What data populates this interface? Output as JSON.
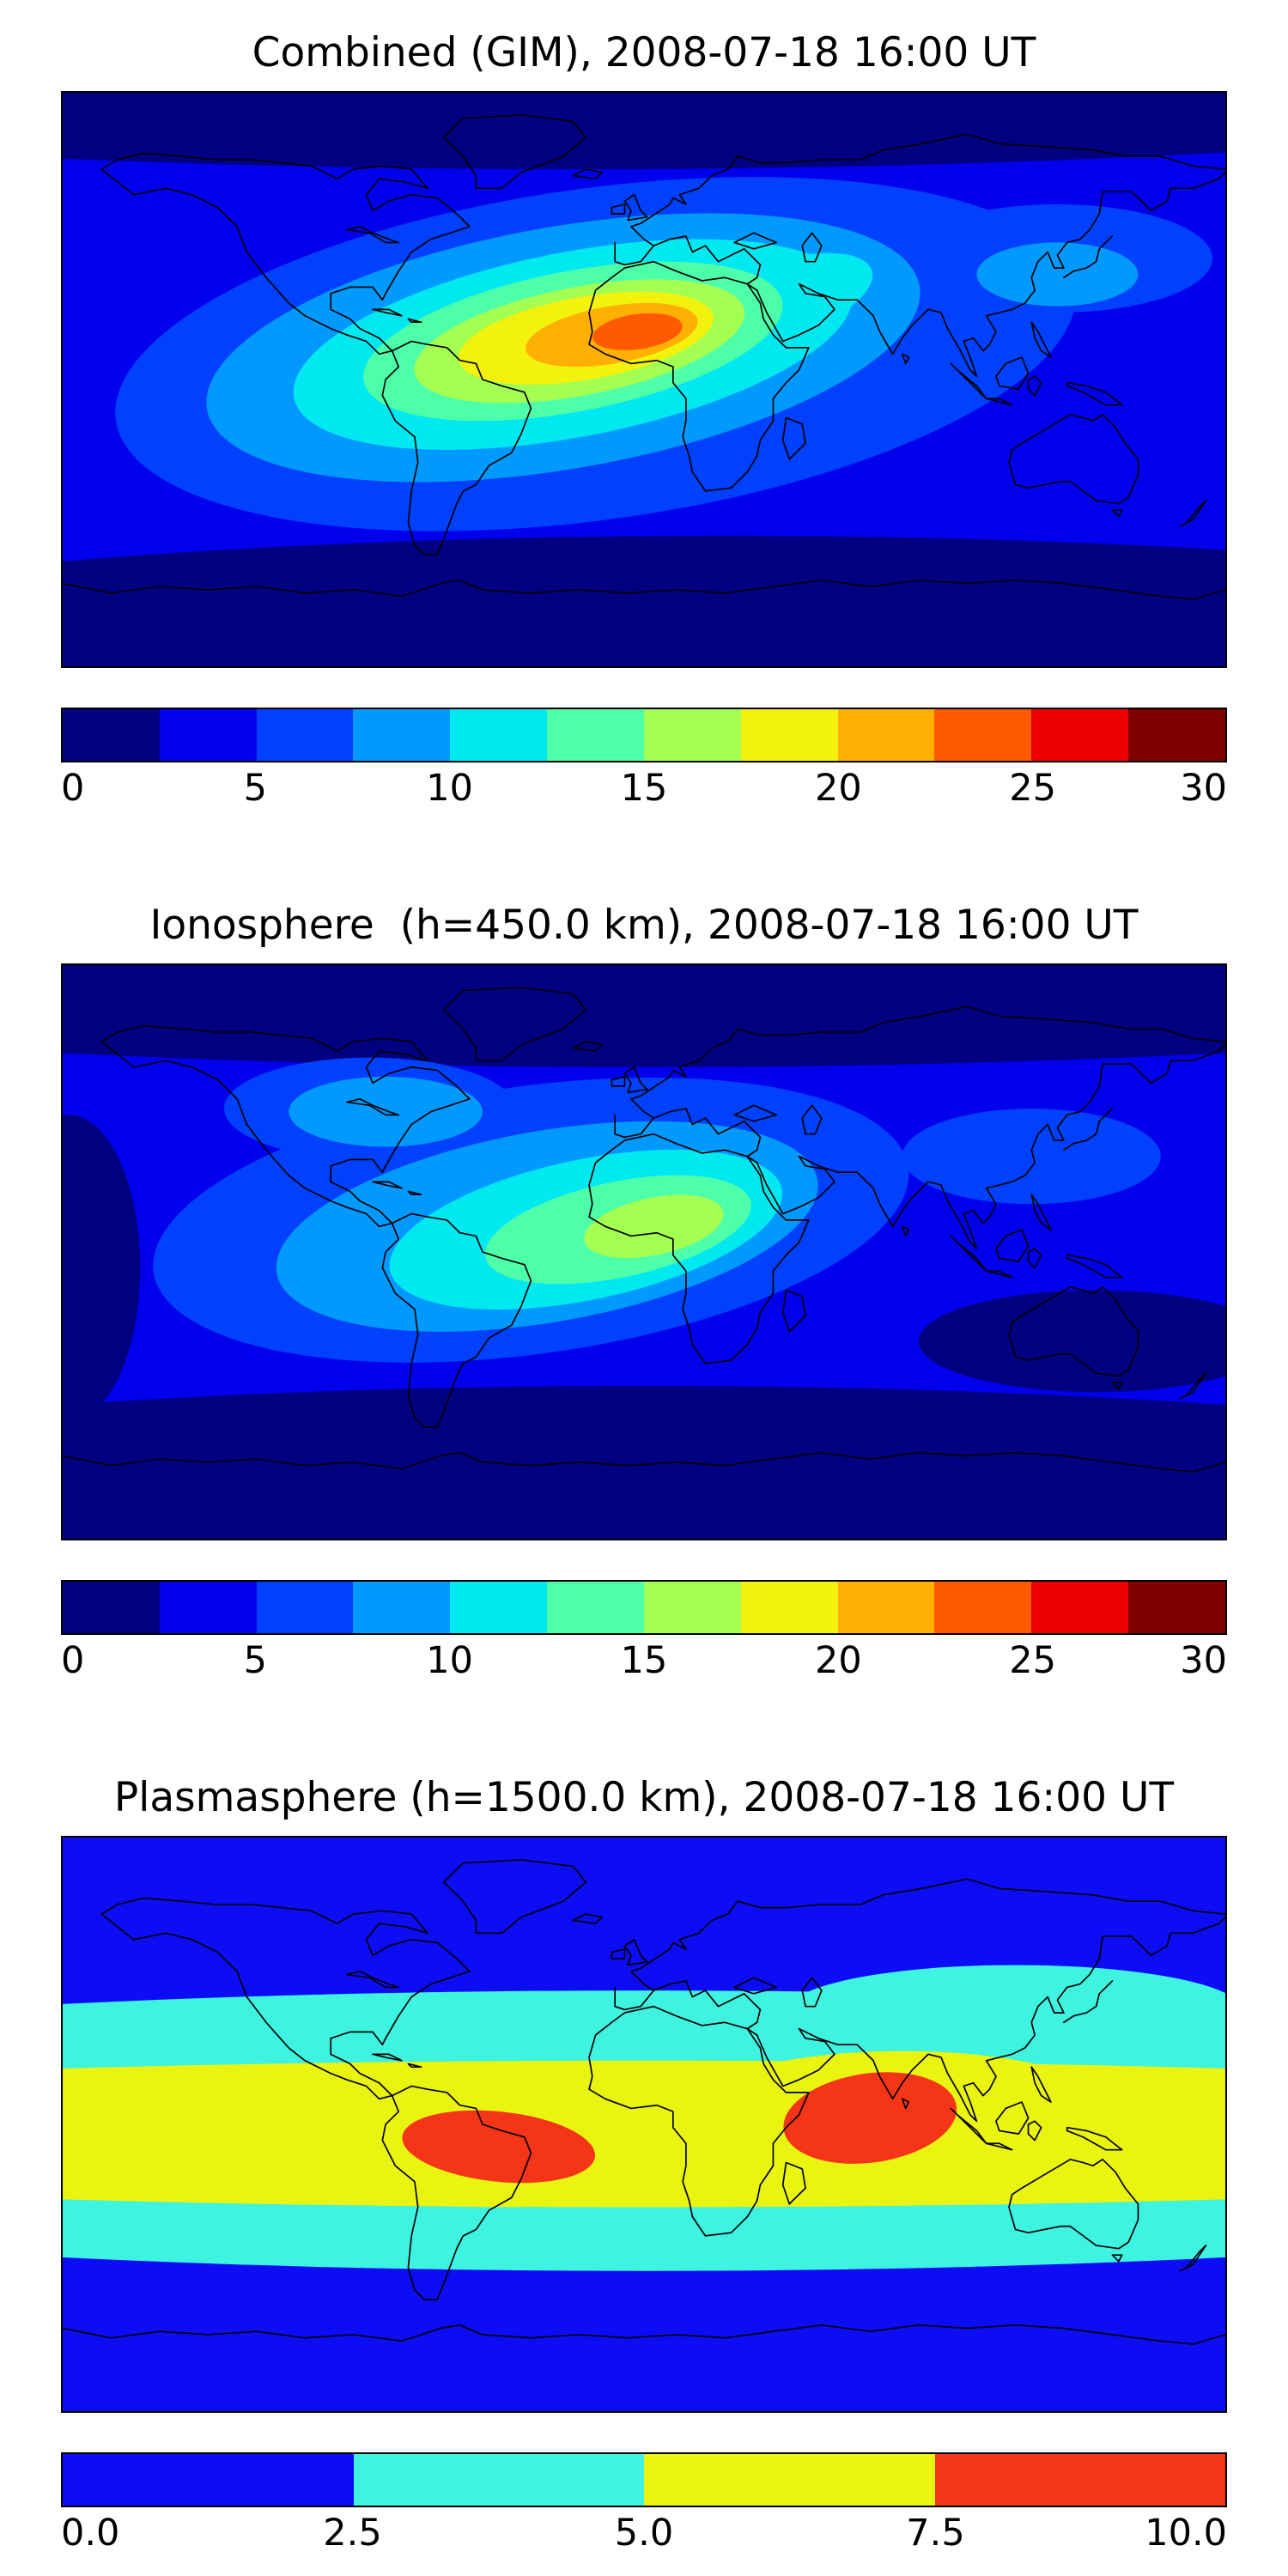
{
  "panels": [
    {
      "id": "combined",
      "title": "Combined (GIM), 2008-07-18 16:00 UT",
      "colorbar": {
        "min": 0,
        "max": 30,
        "ticks": [
          "0",
          "5",
          "10",
          "15",
          "20",
          "25",
          "30"
        ]
      }
    },
    {
      "id": "ionosphere",
      "title": "Ionosphere  (h=450.0 km), 2008-07-18 16:00 UT",
      "colorbar": {
        "min": 0,
        "max": 30,
        "ticks": [
          "0",
          "5",
          "10",
          "15",
          "20",
          "25",
          "30"
        ]
      }
    },
    {
      "id": "plasmasphere",
      "title": "Plasmasphere (h=1500.0 km), 2008-07-18 16:00 UT",
      "colorbar": {
        "min": 0,
        "max": 10,
        "ticks": [
          "0.0",
          "2.5",
          "5.0",
          "7.5",
          "10.0"
        ]
      }
    }
  ],
  "chart_data": [
    {
      "type": "heatmap",
      "title": "Combined (GIM), 2008-07-18 16:00 UT",
      "projection": "equirectangular",
      "x": "longitude",
      "xlim": [
        -180,
        180
      ],
      "y": "latitude",
      "ylim": [
        -90,
        90
      ],
      "levels": [
        0,
        2.5,
        5,
        7.5,
        10,
        12.5,
        15,
        17.5,
        20,
        22.5,
        25,
        27.5,
        30
      ],
      "palette": [
        "#000080",
        "#0000ed",
        "#0040ff",
        "#0099ff",
        "#00e8f0",
        "#4dffa9",
        "#a4ff53",
        "#f2f20d",
        "#ffb000",
        "#ff5a00",
        "#ef0000",
        "#800000"
      ],
      "base_color": "#0000ed",
      "peak_value": 27,
      "peak_location": {
        "lon": 0,
        "lat": 15
      },
      "features": [
        {
          "shape": "ellipse",
          "color": "#000080",
          "cx": -20,
          "cy": 110,
          "rx": 420,
          "ry": 44
        },
        {
          "shape": "ellipse",
          "color": "#000080",
          "cx": 25,
          "cy": -112,
          "rx": 420,
          "ry": 63
        },
        {
          "shape": "ellipse",
          "color": "#0040ff",
          "cx": -15,
          "cy": 8,
          "rx": 150,
          "ry": 52,
          "rot": -8
        },
        {
          "shape": "ellipse",
          "color": "#0040ff",
          "cx": 128,
          "cy": 38,
          "rx": 48,
          "ry": 17
        },
        {
          "shape": "ellipse",
          "color": "#0099ff",
          "cx": -25,
          "cy": 10,
          "rx": 112,
          "ry": 38,
          "rot": -10
        },
        {
          "shape": "ellipse",
          "color": "#0099ff",
          "cx": 128,
          "cy": 33,
          "rx": 25,
          "ry": 10
        },
        {
          "shape": "ellipse",
          "color": "#00e8f0",
          "cx": -22,
          "cy": 11,
          "rx": 88,
          "ry": 29,
          "rot": -11
        },
        {
          "shape": "ellipse",
          "color": "#00e8f0",
          "cx": 42,
          "cy": 25,
          "rx": 30,
          "ry": 12,
          "rot": -18
        },
        {
          "shape": "ellipse",
          "color": "#4dffa9",
          "cx": -22,
          "cy": 12,
          "rx": 66,
          "ry": 22,
          "rot": -11
        },
        {
          "shape": "ellipse",
          "color": "#a4ff53",
          "cx": -20,
          "cy": 12,
          "rx": 52,
          "ry": 17,
          "rot": -11
        },
        {
          "shape": "ellipse",
          "color": "#f2f20d",
          "cx": -18,
          "cy": 13,
          "rx": 40,
          "ry": 13,
          "rot": -10
        },
        {
          "shape": "ellipse",
          "color": "#ffb000",
          "cx": -10,
          "cy": 14,
          "rx": 27,
          "ry": 9,
          "rot": -10
        },
        {
          "shape": "ellipse",
          "color": "#ff5a00",
          "cx": -2,
          "cy": 15,
          "rx": 14,
          "ry": 5.5,
          "rot": -8
        }
      ]
    },
    {
      "type": "heatmap",
      "title": "Ionosphere  (h=450.0 km), 2008-07-18 16:00 UT",
      "projection": "equirectangular",
      "x": "longitude",
      "xlim": [
        -180,
        180
      ],
      "y": "latitude",
      "ylim": [
        -90,
        90
      ],
      "levels": [
        0,
        2.5,
        5,
        7.5,
        10,
        12.5,
        15,
        17.5,
        20,
        22.5,
        25,
        27.5,
        30
      ],
      "palette": [
        "#000080",
        "#0000ed",
        "#0040ff",
        "#0099ff",
        "#00e8f0",
        "#4dffa9",
        "#a4ff53",
        "#f2f20d",
        "#ffb000",
        "#ff5a00",
        "#ef0000",
        "#800000"
      ],
      "base_color": "#0000ed",
      "peak_value": 17,
      "peak_location": {
        "lon": 3,
        "lat": 8
      },
      "features": [
        {
          "shape": "ellipse",
          "color": "#000080",
          "cx": 0,
          "cy": 104,
          "rx": 420,
          "ry": 46
        },
        {
          "shape": "ellipse",
          "color": "#000080",
          "cx": 0,
          "cy": -104,
          "rx": 420,
          "ry": 62
        },
        {
          "shape": "ellipse",
          "color": "#000080",
          "cx": 140,
          "cy": -28,
          "rx": 55,
          "ry": 16
        },
        {
          "shape": "ellipse",
          "color": "#000080",
          "cx": -178,
          "cy": -5,
          "rx": 22,
          "ry": 48
        },
        {
          "shape": "ellipse",
          "color": "#0040ff",
          "cx": -35,
          "cy": 10,
          "rx": 118,
          "ry": 42,
          "rot": -8
        },
        {
          "shape": "ellipse",
          "color": "#0040ff",
          "cx": -85,
          "cy": 45,
          "rx": 45,
          "ry": 16
        },
        {
          "shape": "ellipse",
          "color": "#0040ff",
          "cx": 120,
          "cy": 30,
          "rx": 40,
          "ry": 15
        },
        {
          "shape": "ellipse",
          "color": "#0099ff",
          "cx": -30,
          "cy": 8,
          "rx": 85,
          "ry": 30,
          "rot": -10
        },
        {
          "shape": "ellipse",
          "color": "#0099ff",
          "cx": -80,
          "cy": 44,
          "rx": 30,
          "ry": 11
        },
        {
          "shape": "ellipse",
          "color": "#00e8f0",
          "cx": -18,
          "cy": 7,
          "rx": 62,
          "ry": 22,
          "rot": -12
        },
        {
          "shape": "ellipse",
          "color": "#4dffa9",
          "cx": -8,
          "cy": 7,
          "rx": 42,
          "ry": 15,
          "rot": -12
        },
        {
          "shape": "ellipse",
          "color": "#a4ff53",
          "cx": 3,
          "cy": 8,
          "rx": 22,
          "ry": 9,
          "rot": -12
        }
      ]
    },
    {
      "type": "heatmap",
      "title": "Plasmasphere (h=1500.0 km), 2008-07-18 16:00 UT",
      "projection": "equirectangular",
      "x": "longitude",
      "xlim": [
        -180,
        180
      ],
      "y": "latitude",
      "ylim": [
        -90,
        90
      ],
      "levels": [
        0,
        2.5,
        5,
        7.5,
        10
      ],
      "palette": [
        "#0d0df5",
        "#3ef3e0",
        "#e9f410",
        "#f53518"
      ],
      "base_color": "#0d0df5",
      "peak_value": 9,
      "peak_location": {
        "lon": 70,
        "lat": 2
      },
      "features": [
        {
          "shape": "ellipse",
          "color": "#3ef3e0",
          "cx": 0,
          "cy": -2,
          "rx": 420,
          "ry": 44
        },
        {
          "shape": "ellipse",
          "color": "#3ef3e0",
          "cx": 115,
          "cy": 36,
          "rx": 70,
          "ry": 14
        },
        {
          "shape": "ellipse",
          "color": "#e9f410",
          "cx": 0,
          "cy": -3,
          "rx": 400,
          "ry": 23
        },
        {
          "shape": "ellipse",
          "color": "#e9f410",
          "cx": 80,
          "cy": 8,
          "rx": 60,
          "ry": 15
        },
        {
          "shape": "ellipse",
          "color": "#e9f410",
          "cx": -45,
          "cy": -8,
          "rx": 80,
          "ry": 18
        },
        {
          "shape": "ellipse",
          "color": "#f53518",
          "cx": -45,
          "cy": -7,
          "rx": 30,
          "ry": 11,
          "rot": 6
        },
        {
          "shape": "ellipse",
          "color": "#f53518",
          "cx": 70,
          "cy": 2,
          "rx": 27,
          "ry": 14,
          "rot": -8
        }
      ]
    }
  ]
}
